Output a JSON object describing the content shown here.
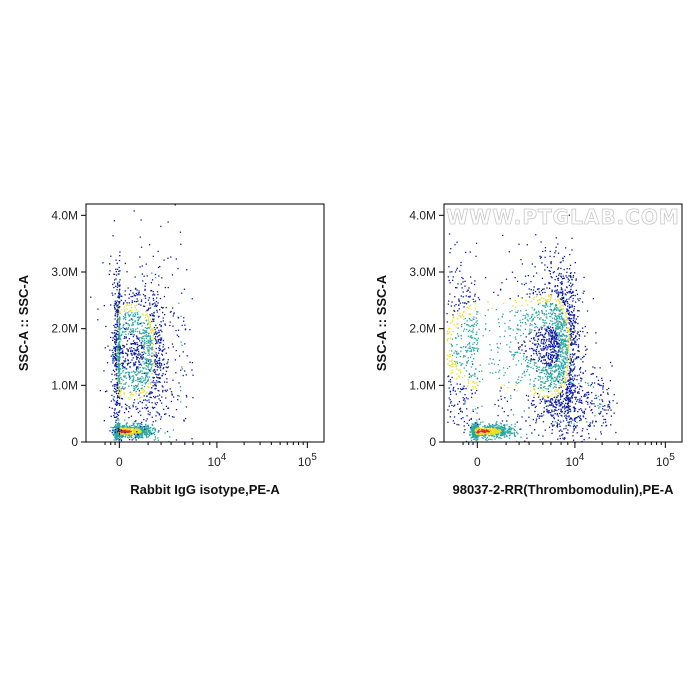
{
  "watermark": "WWW.PTGLAB.COM",
  "colors": {
    "density_low": "#0a1aa0",
    "density_mid": "#2aa6a0",
    "density_high": "#e8e01c",
    "density_peak": "#e8281a",
    "axis": "#000000"
  },
  "chart_data": [
    {
      "type": "scatter",
      "title": "",
      "xlabel": "Rabbit IgG isotype,PE-A",
      "ylabel": "SSC-A :: SSC-A",
      "x_scale": "biexponential",
      "x_ticks": [
        {
          "value": 0,
          "base": "0",
          "exp": ""
        },
        {
          "value": 10000,
          "base": "10",
          "exp": "4"
        },
        {
          "value": 100000,
          "base": "10",
          "exp": "5"
        }
      ],
      "y_ticks": [
        "0",
        "1.0M",
        "2.0M",
        "3.0M",
        "4.0M"
      ],
      "ylim": [
        0,
        4200000
      ],
      "populations": [
        {
          "name": "",
          "x_center": 0,
          "y_center": 200000,
          "x_spread": 180,
          "y_spread": 60000,
          "count": 900,
          "density": "peak"
        },
        {
          "name": "",
          "x_center": 100,
          "y_center": 1600000,
          "x_spread": 250,
          "y_spread": 650000,
          "count": 1500,
          "density": "mid"
        },
        {
          "name": "",
          "x_center": 600,
          "y_center": 1500000,
          "x_spread": 900,
          "y_spread": 1200000,
          "count": 250,
          "density": "low"
        }
      ]
    },
    {
      "type": "scatter",
      "title": "",
      "xlabel": "98037-2-RR(Thrombomodulin),PE-A",
      "ylabel": "SSC-A :: SSC-A",
      "x_scale": "biexponential",
      "x_ticks": [
        {
          "value": 0,
          "base": "0",
          "exp": ""
        },
        {
          "value": 10000,
          "base": "10",
          "exp": "4"
        },
        {
          "value": 100000,
          "base": "10",
          "exp": "5"
        }
      ],
      "y_ticks": [
        "0",
        "1.0M",
        "2.0M",
        "3.0M",
        "4.0M"
      ],
      "ylim": [
        0,
        4200000
      ],
      "populations": [
        {
          "name": "",
          "x_center": 0,
          "y_center": 200000,
          "x_spread": 200,
          "y_spread": 60000,
          "count": 900,
          "density": "peak"
        },
        {
          "name": "",
          "x_center": 2500,
          "y_center": 1700000,
          "x_spread": 4000,
          "y_spread": 700000,
          "count": 2600,
          "density": "mid"
        },
        {
          "name": "",
          "x_center": 9000,
          "y_center": 700000,
          "x_spread": 8000,
          "y_spread": 300000,
          "count": 400,
          "density": "low"
        }
      ]
    }
  ]
}
